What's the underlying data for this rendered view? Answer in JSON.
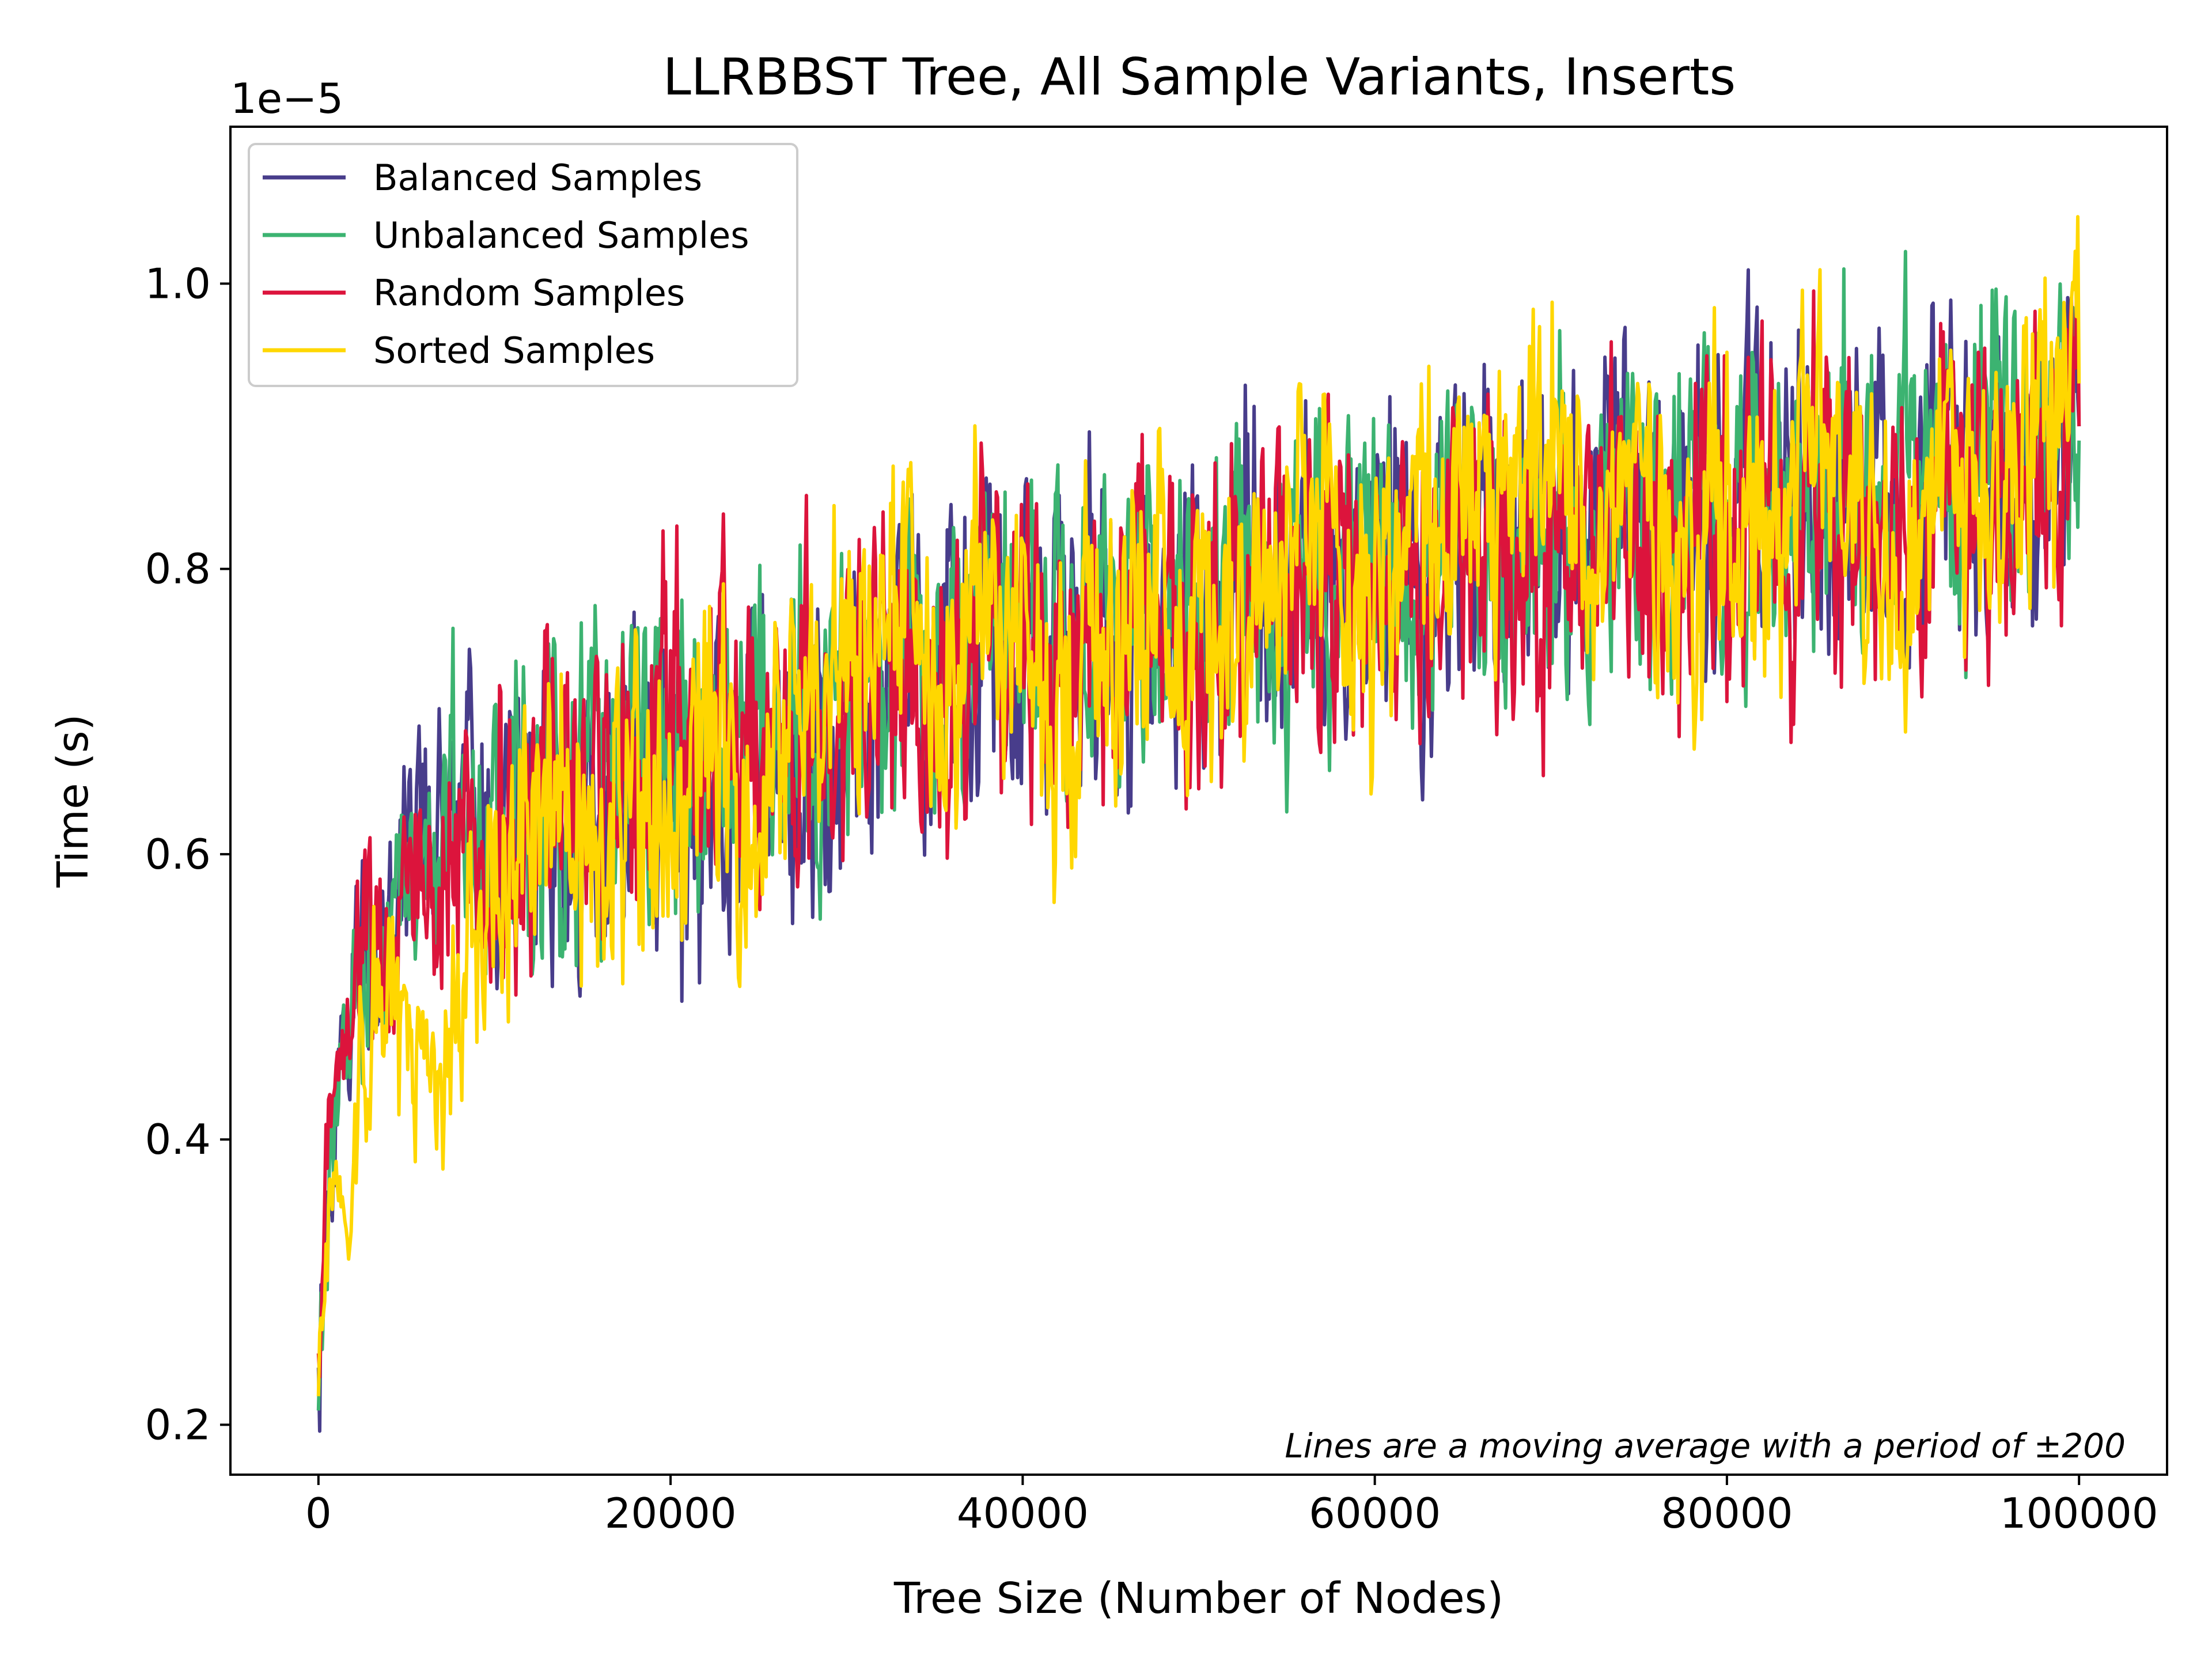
{
  "chart_data": {
    "type": "line",
    "title": "LLRBBST Tree, All Sample Variants, Inserts",
    "xlabel": "Tree Size (Number of Nodes)",
    "ylabel": "Time (s)",
    "y_offset_label": "1e−5",
    "annotation": "Lines are a moving average with a period of ±200",
    "xlim": [
      -5000,
      105000
    ],
    "ylim": [
      0.165,
      1.11
    ],
    "x_ticks": [
      0,
      20000,
      40000,
      60000,
      80000,
      100000
    ],
    "x_tick_labels": [
      "0",
      "20000",
      "40000",
      "60000",
      "80000",
      "100000"
    ],
    "y_ticks": [
      0.2,
      0.4,
      0.6,
      0.8,
      1.0
    ],
    "y_tick_labels": [
      "0.2",
      "0.4",
      "0.6",
      "0.8",
      "1.0"
    ],
    "grid": false,
    "legend_position": "top-left",
    "series": [
      {
        "name": "Balanced Samples",
        "color": "#483D8B",
        "x": [
          0,
          500,
          1000,
          2000,
          3000,
          4000,
          5000,
          6000,
          8000,
          10000,
          12000,
          14000,
          16000,
          18000,
          20000,
          22000,
          24000,
          26000,
          28000,
          30000,
          32000,
          34000,
          36000,
          38000,
          40000,
          42000,
          44000,
          46000,
          48000,
          50000,
          52000,
          54000,
          56000,
          58000,
          60000,
          62000,
          64000,
          66000,
          68000,
          70000,
          72000,
          74000,
          76000,
          78000,
          80000,
          82000,
          84000,
          86000,
          88000,
          90000,
          92000,
          94000,
          96000,
          98000,
          100000
        ],
        "values": [
          0.24,
          0.36,
          0.42,
          0.5,
          0.53,
          0.55,
          0.58,
          0.61,
          0.6,
          0.62,
          0.64,
          0.63,
          0.65,
          0.66,
          0.6,
          0.66,
          0.67,
          0.68,
          0.67,
          0.69,
          0.71,
          0.72,
          0.73,
          0.74,
          0.75,
          0.76,
          0.77,
          0.75,
          0.76,
          0.78,
          0.78,
          0.77,
          0.79,
          0.8,
          0.8,
          0.79,
          0.81,
          0.82,
          0.82,
          0.82,
          0.83,
          0.82,
          0.84,
          0.84,
          0.84,
          0.85,
          0.84,
          0.86,
          0.86,
          0.86,
          0.87,
          0.86,
          0.88,
          0.87,
          0.9
        ]
      },
      {
        "name": "Unbalanced Samples",
        "color": "#3CB371",
        "x": [
          0,
          500,
          1000,
          2000,
          3000,
          4000,
          5000,
          6000,
          8000,
          10000,
          12000,
          14000,
          16000,
          18000,
          20000,
          22000,
          24000,
          26000,
          28000,
          30000,
          32000,
          34000,
          36000,
          38000,
          40000,
          42000,
          44000,
          46000,
          48000,
          50000,
          52000,
          54000,
          56000,
          58000,
          60000,
          62000,
          64000,
          66000,
          68000,
          70000,
          72000,
          74000,
          76000,
          78000,
          80000,
          82000,
          84000,
          86000,
          88000,
          90000,
          92000,
          94000,
          96000,
          98000,
          100000
        ],
        "values": [
          0.21,
          0.34,
          0.43,
          0.49,
          0.52,
          0.56,
          0.58,
          0.6,
          0.62,
          0.63,
          0.63,
          0.64,
          0.65,
          0.67,
          0.68,
          0.68,
          0.69,
          0.69,
          0.7,
          0.71,
          0.71,
          0.73,
          0.73,
          0.74,
          0.74,
          0.76,
          0.76,
          0.77,
          0.77,
          0.78,
          0.78,
          0.78,
          0.79,
          0.79,
          0.8,
          0.8,
          0.81,
          0.81,
          0.82,
          0.82,
          0.83,
          0.83,
          0.84,
          0.84,
          0.85,
          0.85,
          0.85,
          0.86,
          0.86,
          0.87,
          0.87,
          0.87,
          0.88,
          0.88,
          0.89
        ]
      },
      {
        "name": "Random Samples",
        "color": "#DC143C",
        "x": [
          0,
          500,
          1000,
          2000,
          3000,
          4000,
          5000,
          6000,
          8000,
          10000,
          12000,
          14000,
          16000,
          18000,
          20000,
          22000,
          24000,
          26000,
          28000,
          30000,
          32000,
          34000,
          36000,
          38000,
          40000,
          42000,
          44000,
          46000,
          48000,
          50000,
          52000,
          54000,
          56000,
          58000,
          60000,
          62000,
          64000,
          66000,
          68000,
          70000,
          72000,
          74000,
          76000,
          78000,
          80000,
          82000,
          84000,
          86000,
          88000,
          90000,
          92000,
          94000,
          96000,
          98000,
          100000
        ],
        "values": [
          0.25,
          0.37,
          0.44,
          0.51,
          0.53,
          0.56,
          0.57,
          0.59,
          0.6,
          0.62,
          0.63,
          0.64,
          0.66,
          0.66,
          0.67,
          0.68,
          0.69,
          0.7,
          0.7,
          0.71,
          0.72,
          0.72,
          0.73,
          0.74,
          0.75,
          0.75,
          0.76,
          0.76,
          0.77,
          0.77,
          0.78,
          0.78,
          0.79,
          0.79,
          0.78,
          0.79,
          0.8,
          0.8,
          0.81,
          0.81,
          0.81,
          0.82,
          0.82,
          0.82,
          0.83,
          0.83,
          0.84,
          0.84,
          0.84,
          0.85,
          0.85,
          0.85,
          0.85,
          0.86,
          0.9
        ]
      },
      {
        "name": "Sorted Samples",
        "color": "#FFD700",
        "x": [
          0,
          500,
          1000,
          2000,
          3000,
          4000,
          5000,
          6000,
          8000,
          10000,
          12000,
          14000,
          16000,
          18000,
          20000,
          22000,
          24000,
          26000,
          28000,
          30000,
          32000,
          34000,
          36000,
          38000,
          40000,
          42000,
          44000,
          46000,
          48000,
          50000,
          52000,
          54000,
          56000,
          58000,
          60000,
          62000,
          64000,
          66000,
          68000,
          70000,
          72000,
          74000,
          76000,
          78000,
          80000,
          82000,
          84000,
          86000,
          88000,
          90000,
          92000,
          94000,
          96000,
          98000,
          100000
        ],
        "values": [
          0.22,
          0.35,
          0.34,
          0.37,
          0.45,
          0.52,
          0.47,
          0.44,
          0.48,
          0.57,
          0.6,
          0.63,
          0.6,
          0.66,
          0.62,
          0.66,
          0.63,
          0.68,
          0.72,
          0.71,
          0.75,
          0.76,
          0.73,
          0.78,
          0.73,
          0.7,
          0.75,
          0.79,
          0.78,
          0.76,
          0.8,
          0.78,
          0.81,
          0.79,
          0.78,
          0.82,
          0.83,
          0.82,
          0.83,
          0.87,
          0.85,
          0.84,
          0.86,
          0.8,
          0.86,
          0.84,
          0.87,
          0.9,
          0.84,
          0.82,
          0.86,
          0.82,
          0.89,
          0.92,
          0.93
        ]
      }
    ]
  }
}
